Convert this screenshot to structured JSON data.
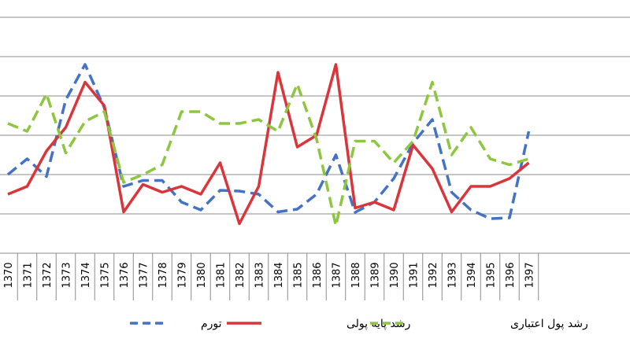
{
  "chart_data": {
    "type": "line",
    "title": "",
    "xlabel": "",
    "ylabel": "",
    "categories": [
      "1370",
      "1371",
      "1372",
      "1373",
      "1374",
      "1375",
      "1376",
      "1377",
      "1378",
      "1379",
      "1380",
      "1381",
      "1382",
      "1383",
      "1384",
      "1385",
      "1386",
      "1387",
      "1388",
      "1389",
      "1390",
      "1391",
      "1392",
      "1393",
      "1394",
      "1395",
      "1396",
      "1397"
    ],
    "ylim": [
      0,
      6
    ],
    "grid": true,
    "legend_position": "bottom",
    "series": [
      {
        "name": "تورم",
        "color": "#4472C4",
        "dash": "dashed",
        "values": [
          2.0,
          2.4,
          1.95,
          3.9,
          4.8,
          3.7,
          1.7,
          1.85,
          1.85,
          1.3,
          1.1,
          1.6,
          1.58,
          1.5,
          1.05,
          1.12,
          1.5,
          2.5,
          1.04,
          1.3,
          1.9,
          2.8,
          3.4,
          1.55,
          1.1,
          0.88,
          0.9,
          3.1
        ]
      },
      {
        "name": "رشد پایه پولی",
        "color": "#D9353B",
        "dash": "solid",
        "values": [
          1.5,
          1.7,
          2.6,
          3.2,
          4.35,
          3.75,
          1.05,
          1.75,
          1.55,
          1.7,
          1.5,
          2.3,
          0.75,
          1.7,
          4.6,
          2.7,
          3.0,
          4.8,
          1.15,
          1.3,
          1.1,
          2.75,
          2.15,
          1.05,
          1.7,
          1.7,
          1.9,
          2.3
        ]
      },
      {
        "name": "رشد پول اعتباری",
        "color": "#8DC63F",
        "dash": "dashed",
        "values": [
          3.3,
          3.1,
          4.05,
          2.55,
          3.35,
          3.6,
          1.8,
          2.0,
          2.25,
          3.6,
          3.6,
          3.3,
          3.3,
          3.4,
          3.1,
          4.3,
          2.9,
          0.7,
          2.85,
          2.85,
          2.3,
          2.85,
          4.35,
          2.5,
          3.2,
          2.4,
          2.25,
          2.4
        ]
      }
    ]
  }
}
